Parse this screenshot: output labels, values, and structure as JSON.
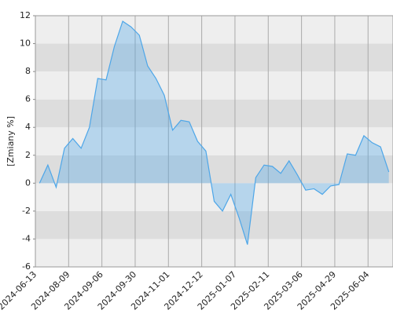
{
  "chart_data": {
    "type": "area",
    "y_label": "[Zmiany %]",
    "categories": [
      "2024-06-13",
      null,
      null,
      null,
      "2024-08-09",
      null,
      null,
      null,
      "2024-09-06",
      null,
      null,
      null,
      "2024-09-30",
      null,
      null,
      null,
      "2024-11-01",
      null,
      null,
      null,
      "2024-12-12",
      null,
      null,
      null,
      "2025-01-07",
      null,
      null,
      null,
      "2025-02-11",
      null,
      null,
      null,
      "2025-03-06",
      null,
      null,
      null,
      "2025-04-29",
      null,
      null,
      null,
      "2025-06-04",
      null,
      null
    ],
    "values": [
      0,
      1.3,
      -0.3,
      2.5,
      3.2,
      2.5,
      4.0,
      7.5,
      7.4,
      9.8,
      11.6,
      11.2,
      10.6,
      8.4,
      7.5,
      6.3,
      3.8,
      4.5,
      4.4,
      3.0,
      2.3,
      -1.3,
      -2.0,
      -0.8,
      -2.5,
      -4.4,
      0.4,
      1.3,
      1.2,
      0.7,
      1.6,
      0.6,
      -0.5,
      -0.4,
      -0.8,
      -0.2,
      -0.1,
      2.1,
      2.0,
      3.4,
      2.9,
      2.6,
      0.8
    ],
    "color": "#4da6e8",
    "ylim": [
      -6,
      12
    ],
    "yticks": [
      -6,
      -4,
      -2,
      0,
      2,
      4,
      6,
      8,
      10,
      12
    ],
    "grid": true
  }
}
